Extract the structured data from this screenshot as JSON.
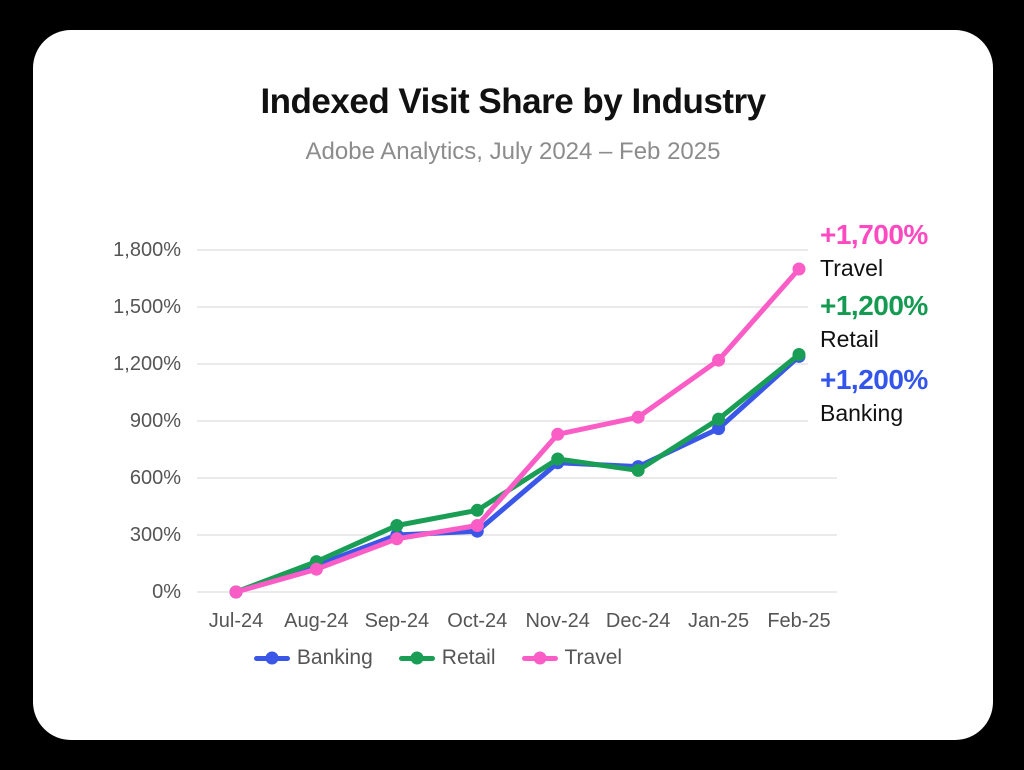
{
  "page": {
    "title": "Indexed Visit Share by Industry",
    "subtitle": "Adobe Analytics, July 2024 – Feb 2025"
  },
  "chart_data": {
    "type": "line",
    "title": "Indexed Visit Share by Industry",
    "subtitle": "Adobe Analytics, July 2024 – Feb 2025",
    "x": [
      "Jul-24",
      "Aug-24",
      "Sep-24",
      "Oct-24",
      "Nov-24",
      "Dec-24",
      "Jan-25",
      "Feb-25"
    ],
    "series": [
      {
        "name": "Banking",
        "color": "#3A57E8",
        "values": [
          0,
          140,
          300,
          320,
          680,
          660,
          860,
          1240
        ]
      },
      {
        "name": "Retail",
        "color": "#1A9E56",
        "values": [
          0,
          160,
          350,
          430,
          700,
          640,
          910,
          1250
        ]
      },
      {
        "name": "Travel",
        "color": "#FA5EC6",
        "values": [
          0,
          120,
          280,
          350,
          830,
          920,
          1220,
          1700
        ]
      }
    ],
    "xlabel": "",
    "ylabel": "",
    "ylim": [
      0,
      1800
    ],
    "yticks": [
      0,
      300,
      600,
      900,
      1200,
      1500,
      1800
    ],
    "ytick_labels": [
      "0%",
      "300%",
      "600%",
      "900%",
      "1,200%",
      "1,500%",
      "1,800%"
    ],
    "grid": true,
    "gridline_color": "#e4e4e4",
    "legend_position": "bottom",
    "annotations": [
      {
        "value": "+1,700%",
        "label": "Travel",
        "color": "#FF49C0"
      },
      {
        "value": "+1,200%",
        "label": "Retail",
        "color": "#149B51"
      },
      {
        "value": "+1,200%",
        "label": "Banking",
        "color": "#3355EB"
      }
    ]
  }
}
